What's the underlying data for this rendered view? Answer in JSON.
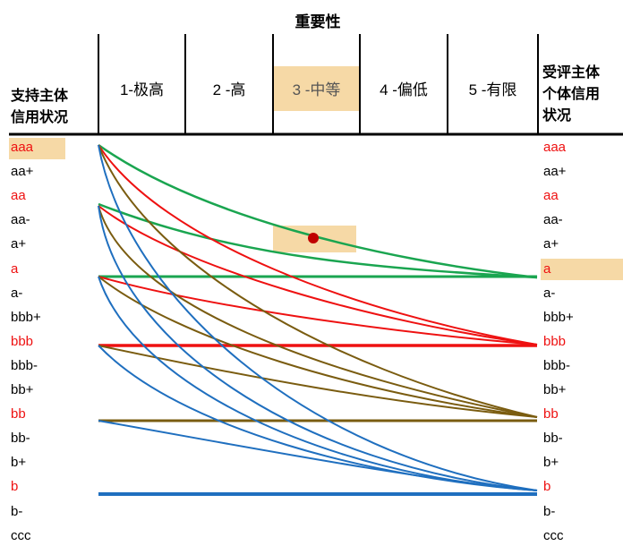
{
  "header": {
    "title": "重要性",
    "columns": [
      "1-极高",
      "2 -高",
      "3 -中等",
      "4 -偏低",
      "5 -有限"
    ],
    "highlighted_column": 2
  },
  "left_header": [
    "支持主体",
    "信用状况"
  ],
  "right_header": [
    "受评主体",
    "个体信用",
    "状况"
  ],
  "ratings": [
    "aaa",
    "aa+",
    "aa",
    "aa-",
    "a+",
    "a",
    "a-",
    "bbb+",
    "bbb",
    "bbb-",
    "bb+",
    "bb",
    "bb-",
    "b+",
    "b",
    "b-",
    "ccc"
  ],
  "red_ratings": [
    "aaa",
    "aa",
    "a",
    "bbb",
    "bb",
    "b"
  ],
  "highlighted_left": "aaa",
  "highlighted_right": "a",
  "colors": {
    "green": "#1aa550",
    "red": "#ee1111",
    "olive": "#7a5c10",
    "blue": "#1f6fbf",
    "highlight": "#f6d9a6",
    "dot": "#c00000",
    "red_text": "#ee1111"
  }
}
